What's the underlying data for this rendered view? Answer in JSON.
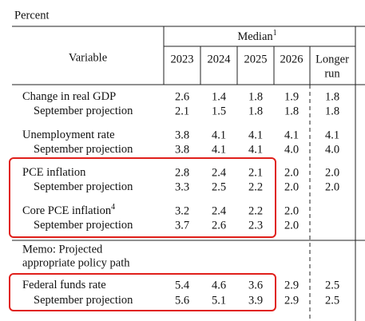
{
  "unit": "Percent",
  "header": {
    "variable": "Variable",
    "median": "Median",
    "median_note": "1",
    "columns": [
      "2023",
      "2024",
      "2025",
      "2026"
    ],
    "longer_run": [
      "Longer",
      "run"
    ]
  },
  "groups": [
    {
      "main": {
        "label": "Change in real GDP",
        "values": [
          "2.6",
          "1.4",
          "1.8",
          "1.9",
          "1.8"
        ]
      },
      "september": {
        "label": "September projection",
        "values": [
          "2.1",
          "1.5",
          "1.8",
          "1.8",
          "1.8"
        ]
      }
    },
    {
      "main": {
        "label": "Unemployment rate",
        "values": [
          "3.8",
          "4.1",
          "4.1",
          "4.1",
          "4.1"
        ]
      },
      "september": {
        "label": "September projection",
        "values": [
          "3.8",
          "4.1",
          "4.1",
          "4.0",
          "4.0"
        ]
      }
    },
    {
      "main": {
        "label": "PCE inflation",
        "values": [
          "2.8",
          "2.4",
          "2.1",
          "2.0",
          "2.0"
        ]
      },
      "september": {
        "label": "September projection",
        "values": [
          "3.3",
          "2.5",
          "2.2",
          "2.0",
          "2.0"
        ]
      }
    },
    {
      "main": {
        "label": "Core PCE inflation",
        "note": "4",
        "values": [
          "3.2",
          "2.4",
          "2.2",
          "2.0"
        ]
      },
      "september": {
        "label": "September projection",
        "values": [
          "3.7",
          "2.6",
          "2.3",
          "2.0"
        ]
      }
    }
  ],
  "memo": [
    "Memo: Projected",
    "appropriate policy path"
  ],
  "policy": {
    "main": {
      "label": "Federal funds rate",
      "values": [
        "5.4",
        "4.6",
        "3.6",
        "2.9",
        "2.5"
      ]
    },
    "september": {
      "label": "September projection",
      "values": [
        "5.6",
        "5.1",
        "3.9",
        "2.9",
        "2.5"
      ]
    }
  }
}
